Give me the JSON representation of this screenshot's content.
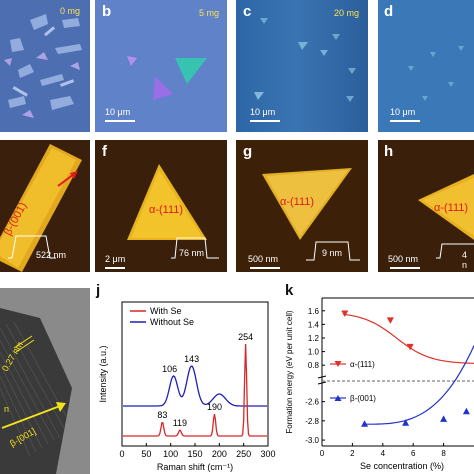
{
  "row1": {
    "a": {
      "label": "",
      "amount": "0 mg"
    },
    "b": {
      "label": "b",
      "amount": "5 mg",
      "scale": "10 μm"
    },
    "c": {
      "label": "c",
      "amount": "20 mg",
      "scale": "10 μm"
    },
    "d": {
      "label": "d",
      "scale": "10 μm"
    }
  },
  "row2": {
    "e": {
      "phase": "β-(001)",
      "height": "522 nm"
    },
    "f": {
      "label": "f",
      "phase": "α-(111)",
      "height": "76 nm",
      "scale": "2 μm"
    },
    "g": {
      "label": "g",
      "phase": "α-(111)",
      "height": "9 nm",
      "scale": "500 nm"
    },
    "h": {
      "label": "h",
      "phase": "α-(111)",
      "height": "4 n",
      "scale": "500 nm"
    }
  },
  "row3": {
    "i": {
      "spacing": "0.27 nm",
      "direction": "β-[001]",
      "extra": "n"
    },
    "j": {
      "label": "j"
    },
    "k": {
      "label": "k"
    }
  },
  "chart_data": [
    {
      "type": "line",
      "panel": "j",
      "xlabel": "Raman shift (cm⁻¹)",
      "ylabel": "Intensity (a.u.)",
      "xlim": [
        0,
        300
      ],
      "xticks": [
        0,
        50,
        100,
        150,
        200,
        250,
        300
      ],
      "legend": "top",
      "series": [
        {
          "name": "With Se",
          "color": "#d62728",
          "peaks": [
            83,
            119,
            190,
            254
          ],
          "peak_labels": [
            "83",
            "119",
            "190",
            "254"
          ]
        },
        {
          "name": "Without Se",
          "color": "#1f1fb4",
          "peaks": [
            106,
            143
          ],
          "peak_labels": [
            "106",
            "143"
          ]
        }
      ]
    },
    {
      "type": "scatter",
      "panel": "k",
      "xlabel": "Se concentration (%)",
      "ylabel": "Formation energy (eV per unit cell)",
      "xlim": [
        0,
        10
      ],
      "xticks": [
        "0",
        "2",
        "4",
        "6",
        "8"
      ],
      "yticks_top": [
        "1.6",
        "1.4",
        "1.2",
        "1.0",
        "0.8"
      ],
      "yticks_bottom": [
        "-2.6",
        "-2.8",
        "-3.0"
      ],
      "series": [
        {
          "name": "α-(111)",
          "color": "#e0302a",
          "marker": "triangle-down",
          "x": [
            1.5,
            4.5,
            5.8
          ],
          "y": [
            1.56,
            1.46,
            1.07
          ]
        },
        {
          "name": "β-(001)",
          "color": "#2233cc",
          "marker": "triangle-up",
          "x": [
            2.8,
            5.5,
            8.0,
            9.5
          ],
          "y": [
            -2.83,
            -2.82,
            -2.78,
            -2.7
          ]
        }
      ]
    }
  ]
}
